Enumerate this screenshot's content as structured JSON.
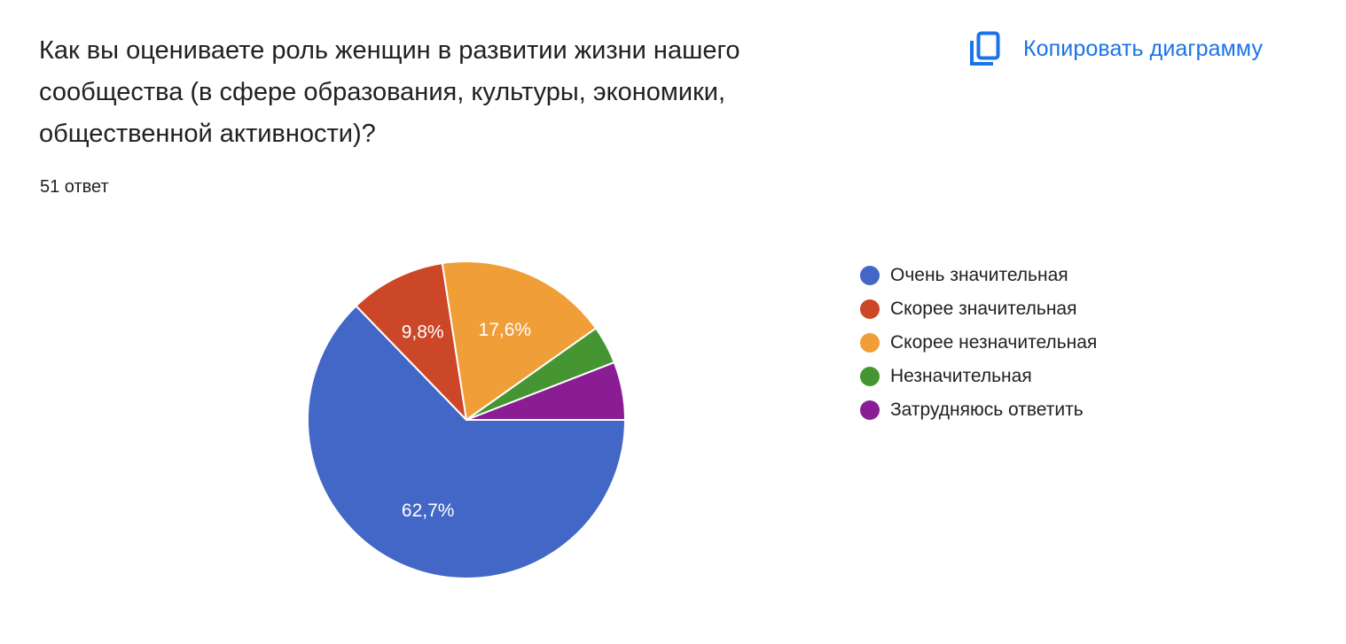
{
  "question": {
    "title": "Как вы оцениваете роль женщин в развитии жизни нашего сообщества (в сфере образования, культуры, экономики, общественной активности)?",
    "response_count": "51 ответ"
  },
  "toolbar": {
    "copy_label": "Копировать диаграмму",
    "copy_icon": "copy-icon",
    "accent_color": "#1a73e8"
  },
  "chart_data": {
    "type": "pie",
    "title": "Как вы оцениваете роль женщин в развитии жизни нашего сообщества (в сфере образования, культуры, экономики, общественной активности)?",
    "total_responses": 51,
    "start_angle_deg": 90,
    "direction": "clockwise",
    "legend_position": "right",
    "categories": [
      "Очень значительная",
      "Скорее значительная",
      "Скорее незначительная",
      "Незначительная",
      "Затрудняюсь ответить"
    ],
    "values": [
      62.7,
      9.8,
      17.6,
      3.9,
      5.9
    ],
    "counts": [
      32,
      5,
      9,
      2,
      3
    ],
    "labels": [
      "62,7%",
      "9,8%",
      "17,6%",
      "",
      ""
    ],
    "colors": [
      "#4267c6",
      "#cc4728",
      "#f09e38",
      "#459632",
      "#8a1d94"
    ]
  },
  "legend": {
    "items": [
      {
        "label": "Очень значительная",
        "color": "#4267c6"
      },
      {
        "label": "Скорее значительная",
        "color": "#cc4728"
      },
      {
        "label": "Скорее незначительная",
        "color": "#f09e38"
      },
      {
        "label": "Незначительная",
        "color": "#459632"
      },
      {
        "label": "Затрудняюсь ответить",
        "color": "#8a1d94"
      }
    ]
  }
}
